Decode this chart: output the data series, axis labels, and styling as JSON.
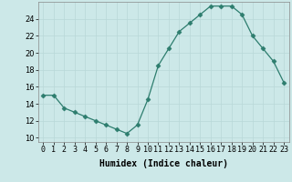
{
  "x": [
    0,
    1,
    2,
    3,
    4,
    5,
    6,
    7,
    8,
    9,
    10,
    11,
    12,
    13,
    14,
    15,
    16,
    17,
    18,
    19,
    20,
    21,
    22,
    23
  ],
  "y": [
    15,
    15,
    13.5,
    13,
    12.5,
    12,
    11.5,
    11,
    10.5,
    11.5,
    14.5,
    18.5,
    20.5,
    22.5,
    23.5,
    24.5,
    25.5,
    25.5,
    25.5,
    24.5,
    22,
    20.5,
    19,
    16.5
  ],
  "line_color": "#2d7d6e",
  "marker": "D",
  "marker_size": 2.5,
  "bg_color": "#cce8e8",
  "grid_color": "#b8d8d8",
  "xlabel": "Humidex (Indice chaleur)",
  "xlim": [
    -0.5,
    23.5
  ],
  "ylim": [
    9.5,
    26.0
  ],
  "yticks": [
    10,
    12,
    14,
    16,
    18,
    20,
    22,
    24
  ],
  "xtick_labels": [
    "0",
    "1",
    "2",
    "3",
    "4",
    "5",
    "6",
    "7",
    "8",
    "9",
    "10",
    "11",
    "12",
    "13",
    "14",
    "15",
    "16",
    "17",
    "18",
    "19",
    "20",
    "21",
    "22",
    "23"
  ],
  "label_fontsize": 7,
  "tick_fontsize": 6
}
